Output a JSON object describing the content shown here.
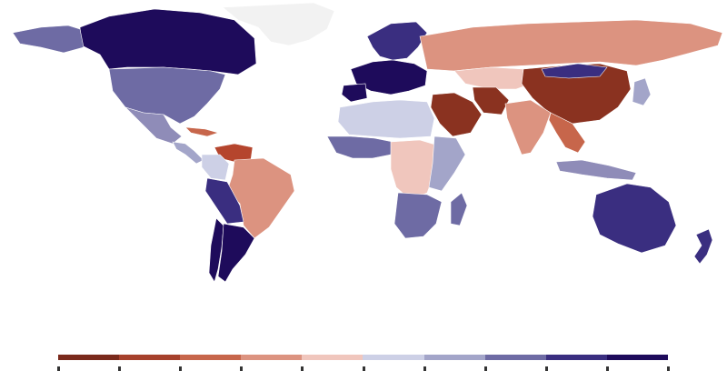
{
  "map": {
    "type": "choropleth-world",
    "legend": {
      "colors": [
        "#7a2a1c",
        "#a6412c",
        "#c7664b",
        "#dc9380",
        "#f0c6bd",
        "#cdd0e6",
        "#a3a5c9",
        "#6e6ba4",
        "#3a2e80",
        "#1e0b5b"
      ],
      "labels": []
    },
    "regions": [
      {
        "name": "greenland",
        "color": "#f2f2f2"
      },
      {
        "name": "canada",
        "color": "#1e0b5b"
      },
      {
        "name": "alaska",
        "color": "#6e6ba4"
      },
      {
        "name": "usa",
        "color": "#6e6ba4"
      },
      {
        "name": "mexico",
        "color": "#8f8cb8"
      },
      {
        "name": "cuba",
        "color": "#c7664b"
      },
      {
        "name": "central-america",
        "color": "#a3a5c9"
      },
      {
        "name": "venezuela",
        "color": "#b5452d"
      },
      {
        "name": "colombia",
        "color": "#cdd0e6"
      },
      {
        "name": "brazil",
        "color": "#dc9380"
      },
      {
        "name": "peru-bolivia",
        "color": "#3a2e80"
      },
      {
        "name": "chile",
        "color": "#1e0b5b"
      },
      {
        "name": "argentina",
        "color": "#1e0b5b"
      },
      {
        "name": "europe-west",
        "color": "#1e0b5b"
      },
      {
        "name": "scandinavia",
        "color": "#3a2e80"
      },
      {
        "name": "iberia",
        "color": "#1e0b5b"
      },
      {
        "name": "russia",
        "color": "#dc9380"
      },
      {
        "name": "kazakhstan",
        "color": "#f0c6bd"
      },
      {
        "name": "china",
        "color": "#8a3220"
      },
      {
        "name": "mongolia",
        "color": "#3a2e80"
      },
      {
        "name": "middle-east",
        "color": "#8a3220"
      },
      {
        "name": "iran",
        "color": "#8a3220"
      },
      {
        "name": "india",
        "color": "#dc9380"
      },
      {
        "name": "southeast-asia",
        "color": "#c7664b"
      },
      {
        "name": "japan",
        "color": "#a3a5c9"
      },
      {
        "name": "north-africa",
        "color": "#cdd0e6"
      },
      {
        "name": "west-africa",
        "color": "#6e6ba4"
      },
      {
        "name": "central-africa",
        "color": "#f0c6bd"
      },
      {
        "name": "east-africa",
        "color": "#a3a5c9"
      },
      {
        "name": "southern-africa",
        "color": "#6e6ba4"
      },
      {
        "name": "madagascar",
        "color": "#6e6ba4"
      },
      {
        "name": "indonesia",
        "color": "#8f8cb8"
      },
      {
        "name": "australia",
        "color": "#3a2e80"
      },
      {
        "name": "new-zealand",
        "color": "#3a2e80"
      }
    ]
  }
}
